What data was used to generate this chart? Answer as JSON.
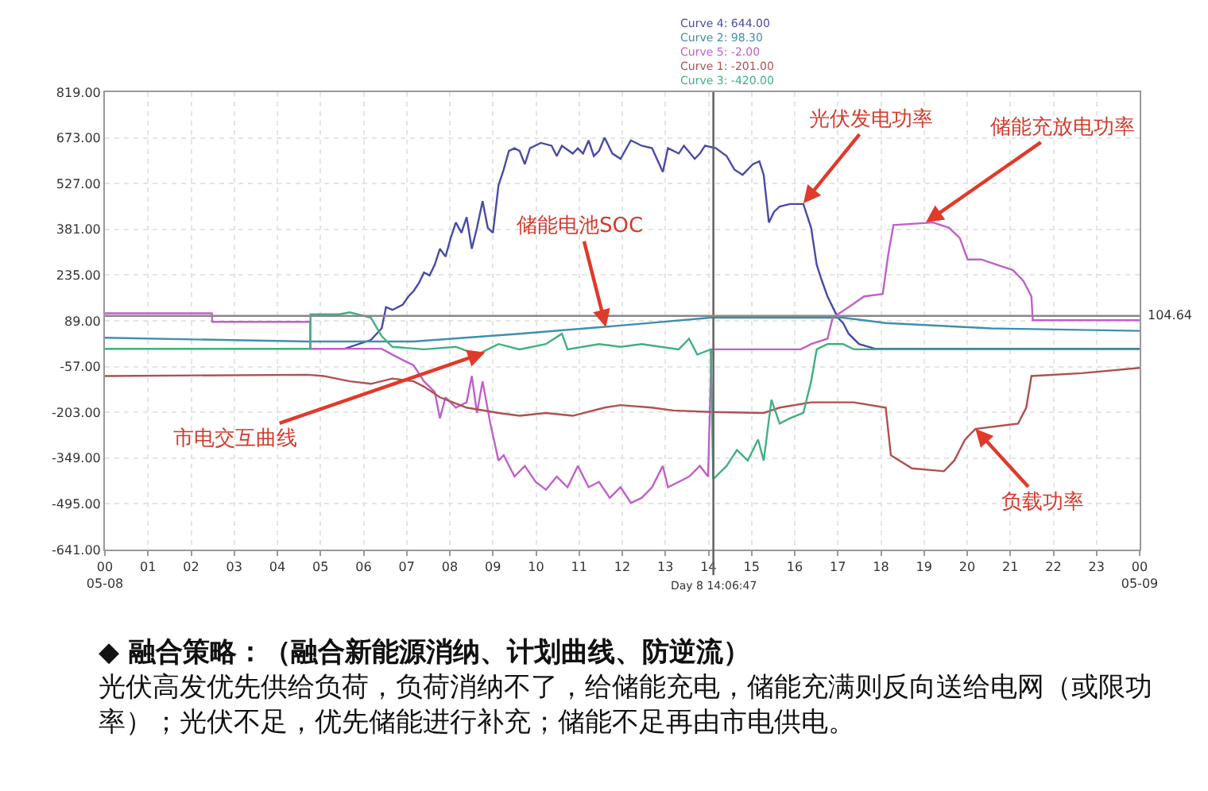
{
  "chart_data": {
    "type": "line",
    "x": [
      0,
      5.56,
      6.17,
      6.42,
      6.52,
      6.67,
      6.91,
      7.04,
      7.16,
      7.28,
      7.4,
      7.53,
      7.65,
      7.77,
      7.9,
      8.02,
      8.14,
      8.27,
      8.39,
      8.51,
      8.63,
      8.76,
      8.88,
      9.0,
      9.13,
      9.25,
      9.37,
      9.5,
      9.62,
      9.74,
      9.86,
      10.11,
      10.36,
      10.48,
      10.6,
      10.85,
      10.97,
      11.09,
      11.22,
      11.34,
      11.46,
      11.59,
      11.77,
      11.96,
      12.2,
      12.45,
      12.69,
      12.94,
      13.06,
      13.31,
      13.43,
      13.68,
      13.8,
      13.92,
      14.17,
      14.42,
      14.6,
      14.79,
      15.03,
      15.18,
      15.28,
      15.4,
      15.52,
      15.65,
      15.89,
      16.2,
      16.38,
      16.51,
      16.63,
      16.76,
      16.88,
      17.0,
      17.12,
      17.25,
      17.49,
      17.86,
      24
    ],
    "series": [
      {
        "name": "Curve 4: 644.00",
        "color": "#4a4aa8",
        "values": [
          0,
          0,
          28,
          65,
          133,
          124,
          141,
          167,
          184,
          209,
          243,
          234,
          268,
          319,
          294,
          353,
          403,
          370,
          420,
          319,
          386,
          471,
          386,
          370,
          522,
          572,
          631,
          640,
          631,
          589,
          640,
          657,
          648,
          615,
          648,
          623,
          640,
          623,
          665,
          615,
          631,
          674,
          623,
          606,
          665,
          648,
          640,
          564,
          640,
          623,
          648,
          606,
          623,
          648,
          640,
          615,
          572,
          555,
          589,
          598,
          555,
          403,
          437,
          454,
          462,
          462,
          386,
          268,
          217,
          167,
          133,
          99,
          82,
          48,
          15,
          0,
          0
        ]
      },
      {
        "name": "Curve 2: 98.30",
        "color": "#3f8fb0",
        "x": [
          0,
          4.7,
          7.16,
          9.62,
          11.96,
          14.05,
          17.12,
          18.11,
          20.56,
          24
        ],
        "values": [
          35,
          23,
          23,
          48,
          74,
          99,
          99,
          82,
          65,
          57
        ]
      },
      {
        "name": "Curve 5: -2.00",
        "color": "#c060c8",
        "x": [
          0,
          2.48,
          2.49,
          4.76,
          4.77,
          6.42,
          6.67,
          6.91,
          7.16,
          7.4,
          7.65,
          7.77,
          7.9,
          8.14,
          8.39,
          8.51,
          8.63,
          8.76,
          8.94,
          9.13,
          9.25,
          9.5,
          9.74,
          9.99,
          10.23,
          10.48,
          10.73,
          10.97,
          11.22,
          11.46,
          11.71,
          11.96,
          12.2,
          12.45,
          12.69,
          12.94,
          13.06,
          13.31,
          13.55,
          13.8,
          13.99,
          14.07,
          16.14,
          16.38,
          16.76,
          16.88,
          17.25,
          17.61,
          18.04,
          18.17,
          18.29,
          19.21,
          19.58,
          19.83,
          20.01,
          20.32,
          21.06,
          21.3,
          21.49,
          21.52,
          24
        ],
        "values": [
          113,
          113,
          86,
          86,
          0,
          0,
          -19,
          -36,
          -53,
          -104,
          -138,
          -222,
          -155,
          -188,
          -171,
          -87,
          -205,
          -104,
          -239,
          -357,
          -340,
          -408,
          -374,
          -425,
          -450,
          -408,
          -442,
          -374,
          -442,
          -425,
          -476,
          -442,
          -492,
          -476,
          -442,
          -374,
          -442,
          -425,
          -408,
          -374,
          -408,
          -2,
          -2,
          15,
          32,
          99,
          133,
          167,
          175,
          302,
          395,
          403,
          386,
          353,
          285,
          285,
          251,
          217,
          167,
          91,
          91
        ]
      },
      {
        "name": "Curve 1: -201.00",
        "color": "#b05050",
        "x": [
          0,
          4.7,
          5.07,
          5.68,
          6.17,
          6.67,
          7.16,
          7.4,
          7.77,
          8.39,
          9.13,
          9.62,
          10.23,
          10.85,
          11.59,
          11.96,
          12.69,
          13.18,
          14.05,
          15.28,
          15.65,
          16.38,
          16.88,
          17.37,
          18.11,
          18.23,
          18.72,
          19.46,
          19.7,
          19.95,
          20.19,
          21.18,
          21.37,
          21.49,
          22.66,
          24
        ],
        "values": [
          -87,
          -83,
          -87,
          -104,
          -112,
          -95,
          -104,
          -121,
          -155,
          -188,
          -205,
          -214,
          -205,
          -214,
          -188,
          -180,
          -188,
          -197,
          -202,
          -205,
          -188,
          -171,
          -171,
          -171,
          -188,
          -340,
          -382,
          -391,
          -357,
          -290,
          -256,
          -239,
          -188,
          -87,
          -78,
          -61
        ]
      },
      {
        "name": "Curve 3: -420.00",
        "color": "#40b080",
        "x": [
          0,
          4.76,
          4.77,
          5.44,
          5.68,
          6.17,
          6.42,
          6.67,
          7.4,
          8.14,
          8.63,
          9.13,
          9.62,
          10.23,
          10.6,
          10.73,
          11.46,
          11.96,
          12.45,
          13.31,
          13.55,
          13.74,
          14.05,
          14.11,
          14.42,
          14.66,
          14.91,
          15.15,
          15.28,
          15.46,
          15.65,
          15.89,
          16.2,
          16.38,
          16.51,
          16.76,
          17.12,
          17.37,
          24
        ],
        "values": [
          0,
          0,
          110,
          110,
          116,
          99,
          40,
          6,
          -2,
          6,
          -19,
          15,
          -2,
          15,
          48,
          -2,
          15,
          6,
          15,
          -2,
          32,
          -19,
          -2,
          -416,
          -374,
          -323,
          -357,
          -290,
          -357,
          -163,
          -239,
          -222,
          -205,
          -104,
          -2,
          15,
          15,
          -2,
          -2
        ]
      }
    ],
    "xlim": [
      0,
      24
    ],
    "xticks": [
      {
        "value": 0,
        "label": "00\n05-08"
      },
      {
        "value": 1,
        "label": "01"
      },
      {
        "value": 2,
        "label": "02"
      },
      {
        "value": 3,
        "label": "03"
      },
      {
        "value": 4,
        "label": "04"
      },
      {
        "value": 5,
        "label": "05"
      },
      {
        "value": 6,
        "label": "06"
      },
      {
        "value": 7,
        "label": "07"
      },
      {
        "value": 8,
        "label": "08"
      },
      {
        "value": 9,
        "label": "09"
      },
      {
        "value": 10,
        "label": "10"
      },
      {
        "value": 11,
        "label": "11"
      },
      {
        "value": 12,
        "label": "12"
      },
      {
        "value": 13,
        "label": "13"
      },
      {
        "value": 14,
        "label": "14"
      },
      {
        "value": 15,
        "label": "15"
      },
      {
        "value": 16,
        "label": "16"
      },
      {
        "value": 17,
        "label": "17"
      },
      {
        "value": 18,
        "label": "18"
      },
      {
        "value": 19,
        "label": "19"
      },
      {
        "value": 20,
        "label": "20"
      },
      {
        "value": 21,
        "label": "21"
      },
      {
        "value": 22,
        "label": "22"
      },
      {
        "value": 23,
        "label": "23"
      },
      {
        "value": 24,
        "label": "00\n05-09"
      }
    ],
    "ylim": [
      -641,
      819
    ],
    "yticks": [
      {
        "value": 819,
        "label": "819.00"
      },
      {
        "value": 673,
        "label": "673.00"
      },
      {
        "value": 527,
        "label": "527.00"
      },
      {
        "value": 381,
        "label": "381.00"
      },
      {
        "value": 235,
        "label": "235.00"
      },
      {
        "value": 89,
        "label": "89.00"
      },
      {
        "value": -57,
        "label": "-57.00"
      },
      {
        "value": -203,
        "label": "-203.00"
      },
      {
        "value": -349,
        "label": "-349.00"
      },
      {
        "value": -495,
        "label": "-495.00"
      },
      {
        "value": -641,
        "label": "-641.00"
      }
    ],
    "grid": true,
    "legend": "top",
    "marker": "none",
    "line_style": "solid",
    "ref_lines": [
      {
        "axis": "x",
        "value": 14.113,
        "label": "Day 8 14:06:47",
        "color": "#666666"
      },
      {
        "axis": "y",
        "value": 104.64,
        "label": "104.64",
        "color": "#888888"
      }
    ],
    "annotations": [
      {
        "text": "光伏发电功率",
        "x": 16.2,
        "y": 464
      },
      {
        "text": "储能充放电功率",
        "x": 19.04,
        "y": 403
      },
      {
        "text": "储能电池SOC",
        "x": 11.62,
        "y": 69
      },
      {
        "text": "市电交互曲线",
        "x": 8.82,
        "y": -12
      },
      {
        "text": "负载功率",
        "x": 20.19,
        "y": -256
      },
      "◆ 融合策略：（融合新能源消纳、计划曲线、防逆流）",
      "光伏高发优先供给负荷，负荷消纳不了，给储能充电，储能充满则反向送给电网（或限功率）；光伏不足，优先储能进行补充；储能不足再由市电供电。"
    ]
  }
}
